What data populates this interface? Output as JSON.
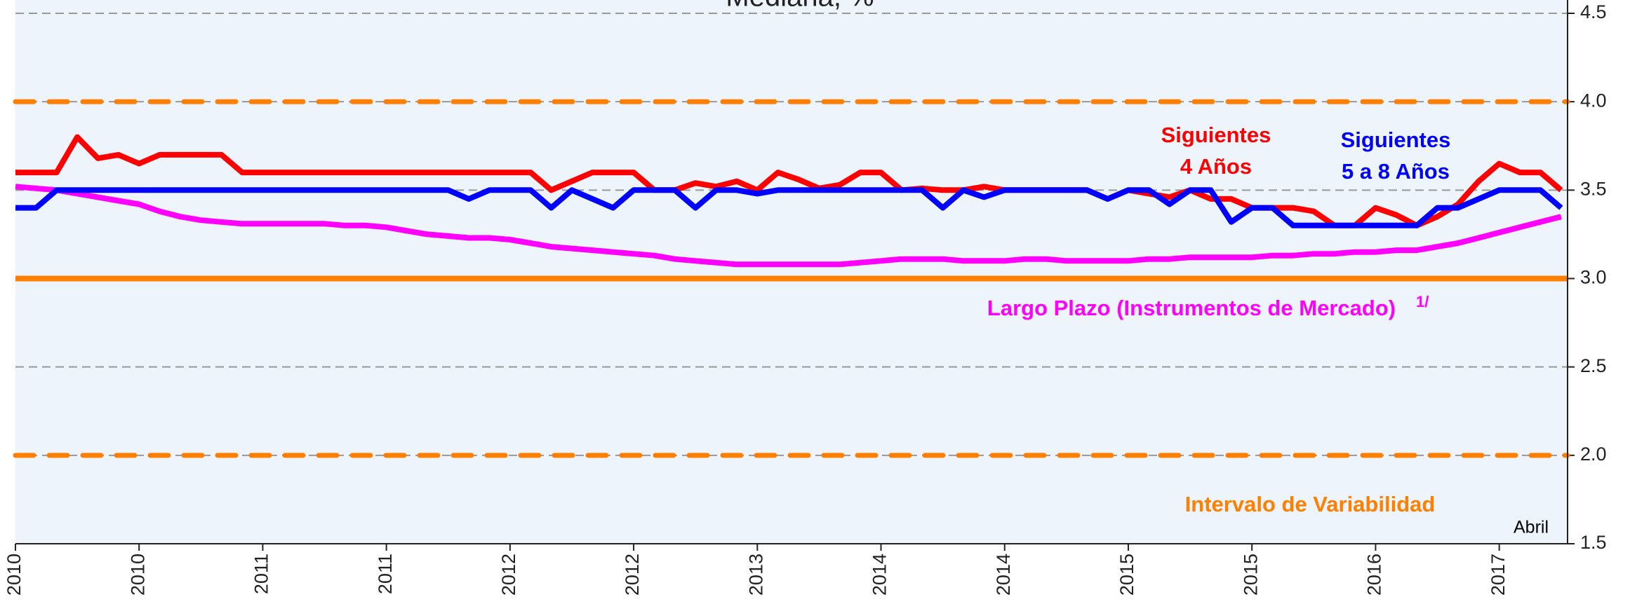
{
  "chart_data": {
    "type": "line",
    "title": "Mediana, %",
    "categories": [
      "2010",
      null,
      null,
      null,
      null,
      null,
      "2010",
      null,
      null,
      null,
      null,
      null,
      "2011",
      null,
      null,
      null,
      null,
      null,
      "2011",
      null,
      null,
      null,
      null,
      null,
      "2012",
      null,
      null,
      null,
      null,
      null,
      "2012",
      null,
      null,
      null,
      null,
      null,
      "2013",
      null,
      null,
      null,
      null,
      null,
      "2014",
      null,
      null,
      null,
      null,
      null,
      "2014",
      null,
      null,
      null,
      null,
      null,
      "2015",
      null,
      null,
      null,
      null,
      null,
      "2015",
      null,
      null,
      null,
      null,
      null,
      "2016",
      null,
      null,
      null,
      null,
      null,
      "2017",
      null,
      null,
      null
    ],
    "series": [
      {
        "name": "Siguientes 4 Años",
        "color": "#ff0000",
        "values": [
          3.6,
          3.6,
          3.6,
          3.8,
          3.68,
          3.7,
          3.65,
          3.7,
          3.7,
          3.7,
          3.7,
          3.6,
          3.6,
          3.6,
          3.6,
          3.6,
          3.6,
          3.6,
          3.6,
          3.6,
          3.6,
          3.6,
          3.6,
          3.6,
          3.6,
          3.6,
          3.5,
          3.55,
          3.6,
          3.6,
          3.6,
          3.5,
          3.5,
          3.54,
          3.52,
          3.55,
          3.5,
          3.6,
          3.56,
          3.51,
          3.53,
          3.6,
          3.6,
          3.5,
          3.51,
          3.5,
          3.5,
          3.52,
          3.5,
          3.5,
          3.5,
          3.5,
          3.5,
          3.45,
          3.5,
          3.48,
          3.46,
          3.5,
          3.45,
          3.45,
          3.4,
          3.4,
          3.4,
          3.38,
          3.3,
          3.3,
          3.4,
          3.36,
          3.3,
          3.35,
          3.42,
          3.55,
          3.65,
          3.6,
          3.6,
          3.5
        ]
      },
      {
        "name": "Siguientes 5 a 8 Años",
        "color": "#0000ff",
        "values": [
          3.4,
          3.4,
          3.5,
          3.5,
          3.5,
          3.5,
          3.5,
          3.5,
          3.5,
          3.5,
          3.5,
          3.5,
          3.5,
          3.5,
          3.5,
          3.5,
          3.5,
          3.5,
          3.5,
          3.5,
          3.5,
          3.5,
          3.45,
          3.5,
          3.5,
          3.5,
          3.4,
          3.5,
          3.45,
          3.4,
          3.5,
          3.5,
          3.5,
          3.4,
          3.5,
          3.5,
          3.48,
          3.5,
          3.5,
          3.5,
          3.5,
          3.5,
          3.5,
          3.5,
          3.5,
          3.4,
          3.5,
          3.46,
          3.5,
          3.5,
          3.5,
          3.5,
          3.5,
          3.45,
          3.5,
          3.5,
          3.42,
          3.5,
          3.5,
          3.32,
          3.4,
          3.4,
          3.3,
          3.3,
          3.3,
          3.3,
          3.3,
          3.3,
          3.3,
          3.4,
          3.4,
          3.45,
          3.5,
          3.5,
          3.5,
          3.4
        ]
      },
      {
        "name": "Largo Plazo (Instrumentos de Mercado)",
        "color": "#ff00ff",
        "values": [
          3.52,
          3.51,
          3.5,
          3.48,
          3.46,
          3.44,
          3.42,
          3.38,
          3.35,
          3.33,
          3.32,
          3.31,
          3.31,
          3.31,
          3.31,
          3.31,
          3.3,
          3.3,
          3.29,
          3.27,
          3.25,
          3.24,
          3.23,
          3.23,
          3.22,
          3.2,
          3.18,
          3.17,
          3.16,
          3.15,
          3.14,
          3.13,
          3.11,
          3.1,
          3.09,
          3.08,
          3.08,
          3.08,
          3.08,
          3.08,
          3.08,
          3.09,
          3.1,
          3.11,
          3.11,
          3.11,
          3.1,
          3.1,
          3.1,
          3.11,
          3.11,
          3.1,
          3.1,
          3.1,
          3.1,
          3.11,
          3.11,
          3.12,
          3.12,
          3.12,
          3.12,
          3.13,
          3.13,
          3.14,
          3.14,
          3.15,
          3.15,
          3.16,
          3.16,
          3.18,
          3.2,
          3.23,
          3.26,
          3.29,
          3.32,
          3.35
        ]
      }
    ],
    "y2lim": [
      1.5,
      4.5
    ],
    "y2ticks": [
      1.5,
      {
        "value": 2.0,
        "label": "2.0"
      },
      2.5,
      {
        "value": 3.0,
        "label": "3.0"
      },
      3.5,
      {
        "value": 4.0,
        "label": "4.0"
      },
      4.5
    ],
    "grid": true,
    "reference_lines": [
      {
        "value": 3.0,
        "color": "#ff7f00",
        "style": "solid"
      },
      {
        "value": 2.0,
        "color": "#ff7f00",
        "style": "dashed"
      },
      {
        "value": 4.0,
        "color": "#ff7f00",
        "style": "dashed"
      }
    ],
    "annotations": [
      {
        "text": "Siguientes",
        "color": "#ff0000"
      },
      {
        "text": "4 Años",
        "color": "#ff0000"
      },
      {
        "text": "Siguientes",
        "color": "#0000ff"
      },
      {
        "text": "5 a 8 Años",
        "color": "#0000ff"
      },
      {
        "text": "Largo Plazo (Instrumentos de Mercado)",
        "color": "#ff00ff"
      },
      {
        "text": "1/",
        "color": "#ff00ff"
      },
      {
        "text": "Intervalo de Variabilidad",
        "color": "#ff7f00"
      },
      {
        "text": "Abril",
        "color": "#000000"
      }
    ]
  }
}
